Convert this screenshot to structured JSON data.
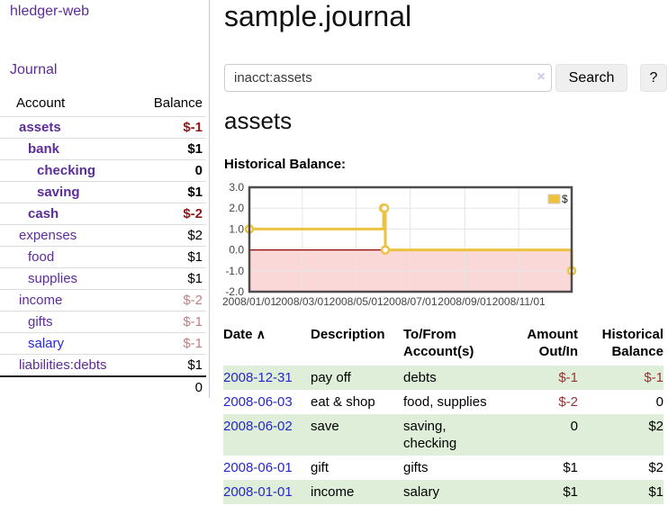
{
  "app": {
    "brand": "hledger-web",
    "nav_journal": "Journal"
  },
  "sidebar": {
    "col_account": "Account",
    "col_balance": "Balance",
    "rows": [
      {
        "account": "assets",
        "indent": 0,
        "bold": true,
        "balance": "$-1",
        "neg": "strong"
      },
      {
        "account": "bank",
        "indent": 1,
        "bold": true,
        "balance": "$1"
      },
      {
        "account": "checking",
        "indent": 2,
        "bold": true,
        "balance": "0"
      },
      {
        "account": "saving",
        "indent": 2,
        "bold": true,
        "balance": "$1"
      },
      {
        "account": "cash",
        "indent": 1,
        "bold": true,
        "balance": "$-2",
        "neg": "strong"
      },
      {
        "account": "expenses",
        "indent": 0,
        "bold": false,
        "balance": "$2"
      },
      {
        "account": "food",
        "indent": 1,
        "bold": false,
        "balance": "$1"
      },
      {
        "account": "supplies",
        "indent": 1,
        "bold": false,
        "balance": "$1"
      },
      {
        "account": "income",
        "indent": 0,
        "bold": false,
        "balance": "$-2",
        "neg": "soft"
      },
      {
        "account": "gifts",
        "indent": 1,
        "bold": false,
        "balance": "$-1",
        "neg": "soft"
      },
      {
        "account": "salary",
        "indent": 1,
        "bold": false,
        "balance": "$-1",
        "neg": "soft",
        "link_blue": true
      },
      {
        "account": "liabilities:debts",
        "indent": 0,
        "bold": false,
        "balance": "$1"
      }
    ],
    "total": "0"
  },
  "header": {
    "title": "sample.journal"
  },
  "search": {
    "value": "inacct:assets",
    "clear_icon": "×",
    "button": "Search",
    "help_button": "?"
  },
  "account_page": {
    "heading": "assets",
    "chart_label": "Historical Balance:"
  },
  "chart_data": {
    "type": "line",
    "style": "step-after",
    "title": "Historical Balance",
    "series": [
      {
        "name": "$",
        "color": "#edc240",
        "points": [
          [
            "2008-01-01",
            1
          ],
          [
            "2008-06-01",
            2
          ],
          [
            "2008-06-02",
            2
          ],
          [
            "2008-06-03",
            0
          ],
          [
            "2008-12-31",
            -1
          ]
        ]
      }
    ],
    "x_ticks": [
      "2008/01/01",
      "2008/03/01",
      "2008/05/01",
      "2008/07/01",
      "2008/09/01",
      "2008/11/01"
    ],
    "y_ticks": [
      "3.0",
      "2.0",
      "1.0",
      "0.0",
      "-1.0",
      "-2.0"
    ],
    "ylim": [
      -2,
      3
    ],
    "xlim": [
      "2008-01-01",
      "2008-12-31"
    ],
    "grid": true,
    "legend_position": "top-right",
    "colors": {
      "negative_fill": "#fbd8d8",
      "zero_line": "#8b0000",
      "gridline": "#e5e5e5",
      "plot_border": "#4d4d4d",
      "tick_text": "#444444"
    }
  },
  "transactions": {
    "headers": {
      "date": "Date",
      "sort_icon": "∧",
      "description": "Description",
      "tofrom": "To/From Account(s)",
      "amount": "Amount Out/In",
      "balance": "Historical Balance"
    },
    "rows": [
      {
        "date": "2008-12-31",
        "description": "pay off",
        "accounts": "debts",
        "amount": "$-1",
        "amount_neg": true,
        "balance": "$-1",
        "balance_neg": true
      },
      {
        "date": "2008-06-03",
        "description": "eat & shop",
        "accounts": "food, supplies",
        "amount": "$-2",
        "amount_neg": true,
        "balance": "0",
        "balance_neg": false
      },
      {
        "date": "2008-06-02",
        "description": "save",
        "accounts": "saving, checking",
        "amount": "0",
        "amount_neg": false,
        "balance": "$2",
        "balance_neg": false
      },
      {
        "date": "2008-06-01",
        "description": "gift",
        "accounts": "gifts",
        "amount": "$1",
        "amount_neg": false,
        "balance": "$2",
        "balance_neg": false
      },
      {
        "date": "2008-01-01",
        "description": "income",
        "accounts": "salary",
        "amount": "$1",
        "amount_neg": false,
        "balance": "$1",
        "balance_neg": false
      }
    ]
  },
  "colors": {
    "link_purple": "#5b2d9a",
    "link_blue": "#2727cc",
    "negative_strong": "#8f1717",
    "negative_soft": "#c08181",
    "negative_table": "#993333",
    "row_stripe_green": "#deeed8",
    "series_yellow": "#edc240",
    "button_bg": "#efefef"
  }
}
